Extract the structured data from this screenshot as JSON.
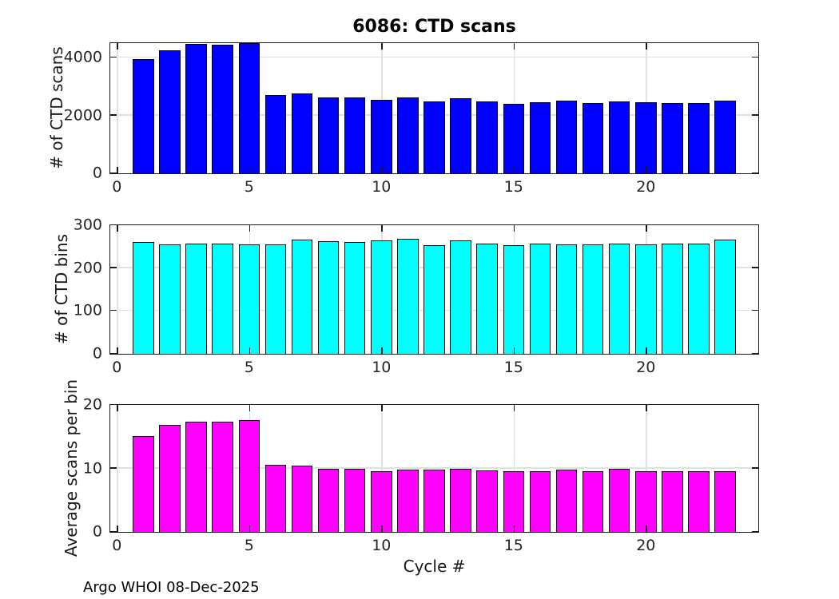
{
  "title": "6086: CTD scans",
  "xlabel": "Cycle #",
  "footer": "Argo WHOI 08-Dec-2025",
  "chart_data": [
    {
      "type": "bar",
      "id": "ctd-scans",
      "ylabel": "# of CTD scans",
      "color": "#0000ff",
      "bar_width": 0.8,
      "grid": true,
      "legend": "none",
      "xlim": [
        -0.25,
        24.25
      ],
      "ylim": [
        0,
        4500
      ],
      "xticks": [
        0,
        5,
        10,
        15,
        20
      ],
      "yticks": [
        0,
        2000,
        4000
      ],
      "x": [
        1,
        2,
        3,
        4,
        5,
        6,
        7,
        8,
        9,
        10,
        11,
        12,
        13,
        14,
        15,
        16,
        17,
        18,
        19,
        20,
        21,
        22,
        23
      ],
      "values": [
        3940,
        4260,
        4460,
        4450,
        4490,
        2700,
        2770,
        2610,
        2610,
        2550,
        2610,
        2480,
        2600,
        2490,
        2400,
        2460,
        2500,
        2420,
        2490,
        2460,
        2430,
        2440,
        2520
      ]
    },
    {
      "type": "bar",
      "id": "ctd-bins",
      "ylabel": "# of CTD bins",
      "color": "#00ffff",
      "bar_width": 0.8,
      "grid": true,
      "legend": "none",
      "xlim": [
        -0.25,
        24.25
      ],
      "ylim": [
        0,
        300
      ],
      "xticks": [
        0,
        5,
        10,
        15,
        20
      ],
      "yticks": [
        0,
        100,
        200,
        300
      ],
      "x": [
        1,
        2,
        3,
        4,
        5,
        6,
        7,
        8,
        9,
        10,
        11,
        12,
        13,
        14,
        15,
        16,
        17,
        18,
        19,
        20,
        21,
        22,
        23
      ],
      "values": [
        260,
        255,
        258,
        257,
        255,
        255,
        266,
        262,
        261,
        265,
        268,
        254,
        264,
        257,
        254,
        257,
        256,
        255,
        257,
        256,
        258,
        257,
        267
      ]
    },
    {
      "type": "bar",
      "id": "avg-scans-per-bin",
      "ylabel": "Average scans per bin",
      "color": "#ff00ff",
      "bar_width": 0.8,
      "grid": true,
      "legend": "none",
      "xlim": [
        -0.25,
        24.25
      ],
      "ylim": [
        0,
        20
      ],
      "xticks": [
        0,
        5,
        10,
        15,
        20
      ],
      "yticks": [
        0,
        10,
        20
      ],
      "x": [
        1,
        2,
        3,
        4,
        5,
        6,
        7,
        8,
        9,
        10,
        11,
        12,
        13,
        14,
        15,
        16,
        17,
        18,
        19,
        20,
        21,
        22,
        23
      ],
      "values": [
        15.1,
        16.8,
        17.3,
        17.3,
        17.6,
        10.6,
        10.4,
        10.0,
        10.0,
        9.6,
        9.8,
        9.8,
        9.9,
        9.7,
        9.5,
        9.6,
        9.8,
        9.5,
        9.9,
        9.6,
        9.5,
        9.5,
        9.5
      ]
    }
  ]
}
